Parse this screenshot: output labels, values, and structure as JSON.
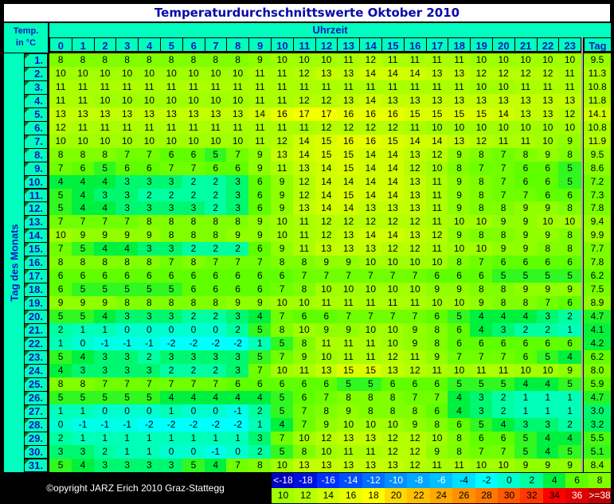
{
  "title": "Temperaturdurchschnittswerte Oktober 2010",
  "header": {
    "temp_label_line1": "Temp.",
    "temp_label_line2": "in °C",
    "time_label": "Uhrzeit",
    "day_axis_label": "Tag des Monats",
    "avg_label": "Tag",
    "hours": [
      "0",
      "1",
      "2",
      "3",
      "4",
      "5",
      "6",
      "7",
      "8",
      "9",
      "10",
      "11",
      "12",
      "13",
      "14",
      "15",
      "16",
      "17",
      "18",
      "19",
      "20",
      "21",
      "22",
      "23"
    ]
  },
  "rows": [
    {
      "day": "1.",
      "values": [
        8,
        8,
        8,
        8,
        8,
        8,
        8,
        8,
        8,
        9,
        10,
        10,
        10,
        11,
        12,
        11,
        11,
        11,
        11,
        10,
        10,
        10,
        10,
        10
      ],
      "avg": "9.5"
    },
    {
      "day": "2.",
      "values": [
        10,
        10,
        10,
        10,
        10,
        10,
        10,
        10,
        10,
        11,
        11,
        12,
        13,
        13,
        14,
        14,
        14,
        13,
        13,
        12,
        12,
        12,
        12,
        11
      ],
      "avg": "11.3"
    },
    {
      "day": "3.",
      "values": [
        11,
        11,
        11,
        11,
        11,
        11,
        11,
        11,
        11,
        11,
        11,
        11,
        11,
        11,
        11,
        11,
        11,
        11,
        11,
        10,
        10,
        11,
        11,
        11
      ],
      "avg": "10.8"
    },
    {
      "day": "4.",
      "values": [
        11,
        11,
        10,
        10,
        10,
        10,
        10,
        10,
        10,
        11,
        11,
        12,
        12,
        13,
        14,
        13,
        13,
        13,
        13,
        13,
        13,
        13,
        13,
        13
      ],
      "avg": "11.8"
    },
    {
      "day": "5.",
      "values": [
        13,
        13,
        13,
        13,
        13,
        13,
        13,
        13,
        13,
        14,
        16,
        17,
        17,
        16,
        16,
        16,
        15,
        15,
        15,
        15,
        14,
        13,
        13,
        12
      ],
      "avg": "14.1"
    },
    {
      "day": "6.",
      "values": [
        12,
        11,
        11,
        11,
        11,
        11,
        11,
        11,
        11,
        11,
        11,
        11,
        12,
        12,
        12,
        12,
        11,
        10,
        10,
        10,
        10,
        10,
        10,
        10
      ],
      "avg": "10.8"
    },
    {
      "day": "7.",
      "values": [
        10,
        10,
        10,
        10,
        10,
        10,
        10,
        10,
        10,
        11,
        12,
        14,
        15,
        16,
        16,
        15,
        14,
        14,
        13,
        12,
        11,
        11,
        10,
        9
      ],
      "avg": "11.9"
    },
    {
      "day": "8.",
      "values": [
        8,
        8,
        8,
        7,
        7,
        6,
        6,
        5,
        7,
        9,
        13,
        14,
        15,
        15,
        14,
        14,
        13,
        12,
        9,
        8,
        7,
        8,
        9,
        8
      ],
      "avg": "9.5"
    },
    {
      "day": "9.",
      "values": [
        7,
        6,
        5,
        6,
        6,
        7,
        7,
        6,
        6,
        9,
        11,
        13,
        14,
        15,
        14,
        14,
        12,
        10,
        8,
        7,
        7,
        6,
        6,
        5
      ],
      "avg": "8.6"
    },
    {
      "day": "10.",
      "values": [
        4,
        4,
        4,
        3,
        3,
        3,
        2,
        2,
        3,
        6,
        9,
        12,
        14,
        14,
        14,
        14,
        13,
        11,
        9,
        8,
        7,
        6,
        6,
        5
      ],
      "avg": "7.2"
    },
    {
      "day": "11.",
      "values": [
        5,
        4,
        3,
        3,
        2,
        2,
        2,
        2,
        3,
        6,
        9,
        12,
        14,
        15,
        14,
        14,
        13,
        11,
        9,
        8,
        7,
        7,
        6,
        6
      ],
      "avg": "7.3"
    },
    {
      "day": "12.",
      "values": [
        5,
        4,
        4,
        3,
        3,
        3,
        3,
        2,
        3,
        6,
        9,
        13,
        14,
        14,
        13,
        13,
        13,
        11,
        9,
        8,
        8,
        9,
        9,
        8
      ],
      "avg": "7.8"
    },
    {
      "day": "13.",
      "values": [
        7,
        7,
        7,
        7,
        8,
        8,
        8,
        8,
        8,
        9,
        10,
        11,
        12,
        12,
        12,
        12,
        12,
        11,
        10,
        10,
        9,
        9,
        10,
        10
      ],
      "avg": "9.4"
    },
    {
      "day": "14.",
      "values": [
        10,
        9,
        9,
        9,
        9,
        8,
        8,
        8,
        9,
        9,
        10,
        11,
        12,
        13,
        14,
        14,
        13,
        12,
        9,
        8,
        8,
        9,
        9,
        8
      ],
      "avg": "9.9"
    },
    {
      "day": "15.",
      "values": [
        7,
        5,
        4,
        4,
        3,
        3,
        2,
        2,
        2,
        6,
        9,
        11,
        13,
        13,
        13,
        12,
        12,
        11,
        10,
        10,
        9,
        9,
        8,
        8
      ],
      "avg": "7.7"
    },
    {
      "day": "16.",
      "values": [
        8,
        8,
        8,
        8,
        8,
        7,
        8,
        7,
        7,
        7,
        8,
        8,
        9,
        9,
        10,
        10,
        10,
        10,
        8,
        7,
        6,
        6,
        6,
        6
      ],
      "avg": "7.8"
    },
    {
      "day": "17.",
      "values": [
        6,
        6,
        6,
        6,
        6,
        6,
        6,
        6,
        6,
        6,
        6,
        7,
        7,
        7,
        7,
        7,
        7,
        6,
        6,
        6,
        5,
        5,
        5,
        5
      ],
      "avg": "6.2"
    },
    {
      "day": "18.",
      "values": [
        6,
        5,
        5,
        5,
        5,
        5,
        6,
        6,
        6,
        6,
        7,
        8,
        10,
        10,
        10,
        10,
        10,
        9,
        9,
        8,
        8,
        9,
        9,
        9
      ],
      "avg": "7.5"
    },
    {
      "day": "19.",
      "values": [
        9,
        9,
        9,
        8,
        8,
        8,
        8,
        8,
        9,
        9,
        10,
        10,
        11,
        11,
        11,
        11,
        11,
        10,
        10,
        9,
        8,
        8,
        7,
        6
      ],
      "avg": "8.9"
    },
    {
      "day": "20.",
      "values": [
        5,
        5,
        4,
        3,
        3,
        3,
        2,
        2,
        3,
        4,
        7,
        6,
        6,
        7,
        7,
        7,
        7,
        6,
        5,
        4,
        4,
        4,
        3,
        2
      ],
      "avg": "4.7"
    },
    {
      "day": "21.",
      "values": [
        2,
        1,
        1,
        0,
        0,
        0,
        0,
        0,
        2,
        5,
        8,
        10,
        9,
        9,
        10,
        10,
        9,
        8,
        6,
        4,
        3,
        2,
        2,
        1
      ],
      "avg": "4.1"
    },
    {
      "day": "22.",
      "values": [
        1,
        0,
        -1,
        -1,
        -1,
        -2,
        -2,
        -2,
        -2,
        1,
        5,
        8,
        11,
        11,
        11,
        10,
        9,
        8,
        6,
        6,
        6,
        6,
        6,
        6
      ],
      "avg": "4.2"
    },
    {
      "day": "23.",
      "values": [
        5,
        4,
        3,
        3,
        2,
        3,
        3,
        3,
        3,
        5,
        7,
        9,
        10,
        11,
        11,
        12,
        11,
        9,
        7,
        7,
        7,
        6,
        5,
        4
      ],
      "avg": "6.2"
    },
    {
      "day": "24.",
      "values": [
        4,
        3,
        3,
        3,
        3,
        2,
        2,
        2,
        3,
        7,
        10,
        11,
        13,
        15,
        15,
        13,
        12,
        11,
        10,
        11,
        11,
        10,
        10,
        9
      ],
      "avg": "8.0"
    },
    {
      "day": "25.",
      "values": [
        8,
        8,
        7,
        7,
        7,
        7,
        7,
        7,
        6,
        6,
        6,
        6,
        6,
        5,
        5,
        6,
        6,
        6,
        5,
        5,
        5,
        4,
        4,
        5
      ],
      "avg": "5.9"
    },
    {
      "day": "26.",
      "values": [
        5,
        5,
        5,
        5,
        5,
        4,
        4,
        4,
        4,
        4,
        5,
        6,
        7,
        8,
        8,
        8,
        7,
        7,
        4,
        3,
        2,
        1,
        1,
        1
      ],
      "avg": "4.7"
    },
    {
      "day": "27.",
      "values": [
        1,
        1,
        0,
        0,
        0,
        1,
        0,
        0,
        -1,
        2,
        5,
        7,
        8,
        9,
        8,
        8,
        8,
        6,
        4,
        3,
        2,
        1,
        1,
        1
      ],
      "avg": "3.0"
    },
    {
      "day": "28.",
      "values": [
        0,
        -1,
        -1,
        -1,
        -2,
        -2,
        -2,
        -2,
        -2,
        1,
        4,
        7,
        9,
        10,
        10,
        10,
        9,
        8,
        6,
        5,
        4,
        3,
        3,
        2
      ],
      "avg": "3.2"
    },
    {
      "day": "29.",
      "values": [
        2,
        1,
        1,
        1,
        1,
        1,
        1,
        1,
        1,
        3,
        7,
        10,
        12,
        13,
        13,
        12,
        12,
        10,
        8,
        6,
        6,
        5,
        4,
        4
      ],
      "avg": "5.5"
    },
    {
      "day": "30.",
      "values": [
        3,
        3,
        2,
        1,
        1,
        0,
        0,
        -1,
        0,
        2,
        5,
        8,
        10,
        11,
        11,
        12,
        12,
        9,
        8,
        7,
        7,
        5,
        4,
        5
      ],
      "avg": "5.1"
    },
    {
      "day": "31.",
      "values": [
        5,
        4,
        3,
        3,
        3,
        3,
        5,
        4,
        7,
        8,
        10,
        13,
        13,
        13,
        13,
        13,
        12,
        11,
        11,
        10,
        10,
        9,
        9,
        9
      ],
      "avg": "8.4"
    }
  ],
  "legend": [
    {
      "label": "<-18",
      "color": "#0000c0",
      "text": "#ffffff"
    },
    {
      "label": "-18",
      "color": "#0010e0",
      "text": "#ffffff"
    },
    {
      "label": "-16",
      "color": "#0030ff",
      "text": "#ffffff"
    },
    {
      "label": "-14",
      "color": "#0050ff",
      "text": "#ffffff"
    },
    {
      "label": "-12",
      "color": "#0070ff",
      "text": "#ffffff"
    },
    {
      "label": "-10",
      "color": "#0090ff",
      "text": "#ffffff"
    },
    {
      "label": "-8",
      "color": "#00a8ff",
      "text": "#ffffff"
    },
    {
      "label": "-6",
      "color": "#00c0ff",
      "text": "#ffffff"
    },
    {
      "label": "-4",
      "color": "#00e0ff",
      "text": "#000000"
    },
    {
      "label": "-2",
      "color": "#00ffff",
      "text": "#000000"
    },
    {
      "label": "0",
      "color": "#00ffd0",
      "text": "#000000"
    },
    {
      "label": "2",
      "color": "#00ffa0",
      "text": "#000000"
    },
    {
      "label": "4",
      "color": "#00f040",
      "text": "#000000"
    },
    {
      "label": "6",
      "color": "#60ff00",
      "text": "#000000"
    },
    {
      "label": "8",
      "color": "#80ff00",
      "text": "#000000"
    },
    {
      "label": "10",
      "color": "#a0ff00",
      "text": "#000000"
    },
    {
      "label": "12",
      "color": "#b4ff00",
      "text": "#000000"
    },
    {
      "label": "14",
      "color": "#d0ff00",
      "text": "#000000"
    },
    {
      "label": "16",
      "color": "#e8ff00",
      "text": "#000000"
    },
    {
      "label": "18",
      "color": "#ffff00",
      "text": "#000000"
    },
    {
      "label": "20",
      "color": "#ffd800",
      "text": "#000000"
    },
    {
      "label": "22",
      "color": "#ffc000",
      "text": "#000000"
    },
    {
      "label": "24",
      "color": "#ffa800",
      "text": "#000000"
    },
    {
      "label": "26",
      "color": "#ff9000",
      "text": "#000000"
    },
    {
      "label": "28",
      "color": "#ff7800",
      "text": "#000000"
    },
    {
      "label": "30",
      "color": "#ff5800",
      "text": "#000000"
    },
    {
      "label": "32",
      "color": "#ff3800",
      "text": "#000000"
    },
    {
      "label": "34",
      "color": "#ff0000",
      "text": "#000000"
    },
    {
      "label": "36",
      "color": "#e00000",
      "text": "#ffffff"
    },
    {
      "label": ">=38",
      "color": "#c00000",
      "text": "#ffffff"
    }
  ],
  "footer": {
    "copyright": "©opyright JARZ Erich 2010 Graz-Stattegg"
  },
  "colors": {
    "header_bg": "#00ffbf",
    "header_text": "#1414c0",
    "title_text": "#0a0aa8"
  }
}
